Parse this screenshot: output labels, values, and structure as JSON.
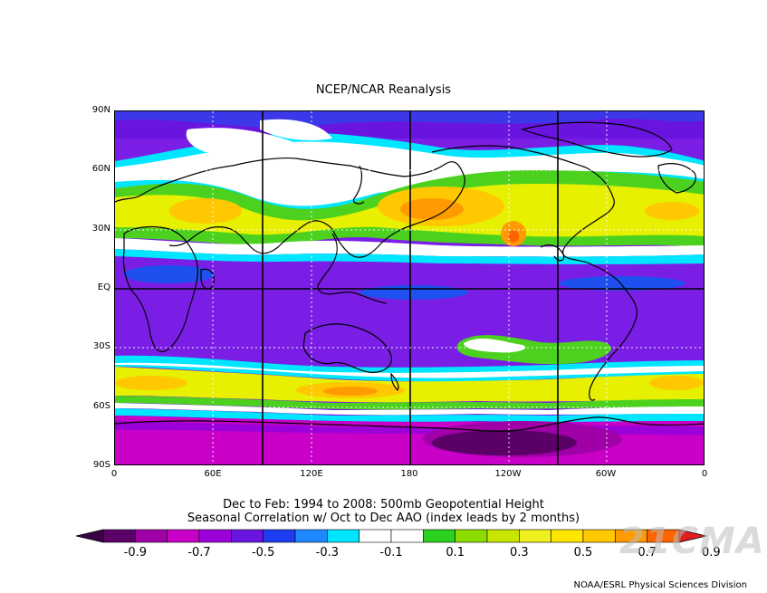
{
  "title": "NCEP/NCAR Reanalysis",
  "lat_labels": [
    "90N",
    "60N",
    "30N",
    "EQ",
    "30S",
    "60S",
    "90S"
  ],
  "lon_labels": [
    "0",
    "60E",
    "120E",
    "180",
    "120W",
    "60W",
    "0"
  ],
  "desc_line1": "Dec to Feb: 1994 to 2008: 500mb Geopotential Height",
  "desc_line2": "Seasonal Correlation w/ Oct to Dec AAO (index leads by 2 months)",
  "colorbar": {
    "labels": [
      "-0.9",
      "-0.7",
      "-0.5",
      "-0.3",
      "-0.1",
      "0.1",
      "0.3",
      "0.5",
      "0.7",
      "0.9"
    ],
    "colors": [
      "#5a0066",
      "#a000a8",
      "#c800c8",
      "#9b00d8",
      "#6a14e0",
      "#1e3cf0",
      "#1e88ff",
      "#00e6ff",
      "#ffffff",
      "#ffffff",
      "#2ad11e",
      "#8cdc00",
      "#c8e600",
      "#f0f01e",
      "#ffe600",
      "#ffc800",
      "#ff9b00",
      "#ff6400"
    ],
    "left_arrow_color": "#3c0046",
    "right_arrow_color": "#e01e1e"
  },
  "credit": "NOAA/ESRL Physical Sciences Division",
  "watermark": "21CMA",
  "map_colors": {
    "background": "#8a2be2",
    "ocean_purple": "#7a1ee6",
    "blue": "#1e50f0",
    "cyan": "#00e6ff",
    "white": "#ffffff",
    "green": "#4cd21e",
    "yellow": "#e6f000",
    "orange": "#ffb400",
    "red_orange": "#ff7800",
    "magenta": "#c800c8",
    "dark_purple": "#5a0066"
  }
}
